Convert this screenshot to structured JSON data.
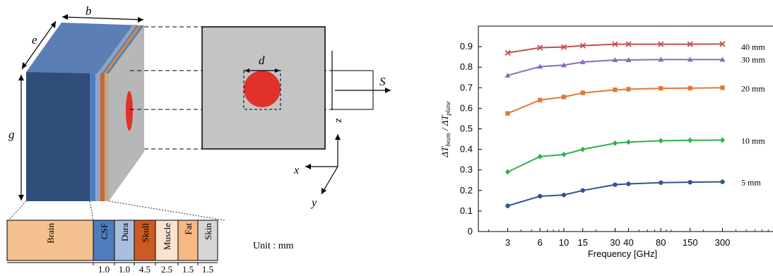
{
  "diagram": {
    "dim_b": "b",
    "dim_e": "e",
    "dim_g": "g",
    "dim_d": "d",
    "dim_S": "S",
    "axis_z": "z",
    "axis_x": "x",
    "axis_y": "y",
    "unit_text": "Unit : mm",
    "layers": [
      {
        "name": "Brain",
        "thickness": "",
        "color": "#F5C08F"
      },
      {
        "name": "CSF",
        "thickness": "1.0",
        "color": "#4E7DBE"
      },
      {
        "name": "Dura",
        "thickness": "1.0",
        "color": "#A9BEDD"
      },
      {
        "name": "Skull",
        "thickness": "4.5",
        "color": "#CC5A22"
      },
      {
        "name": "Muscle",
        "thickness": "2.5",
        "color": "#FAE3CE"
      },
      {
        "name": "Fat",
        "thickness": "1.5",
        "color": "#F7B883"
      },
      {
        "name": "Skin",
        "thickness": "1.5",
        "color": "#D6D6D6"
      }
    ]
  },
  "chart_data": {
    "type": "line",
    "x": [
      3,
      6,
      10,
      15,
      30,
      40,
      80,
      150,
      300
    ],
    "x_tick_labels": [
      "3",
      "6",
      "10",
      "15",
      "30",
      "40",
      "80",
      "150",
      "300"
    ],
    "xscale": "log",
    "xlabel": "Frequency [GHz]",
    "ylabel_main": "ΔT",
    "ylabel_sub1": "beam",
    "ylabel_mid": " / ΔT",
    "ylabel_sub2": "plane",
    "ylim": [
      0,
      1.0
    ],
    "y_ticks": [
      "0",
      "0.1",
      "0.2",
      "0.3",
      "0.4",
      "0.5",
      "0.6",
      "0.7",
      "0.8",
      "0.9"
    ],
    "series": [
      {
        "name": "40 mm",
        "color": "#C0504D",
        "marker": "x",
        "values": [
          0.87,
          0.895,
          0.898,
          0.905,
          0.912,
          0.912,
          0.912,
          0.912,
          0.913
        ]
      },
      {
        "name": "30 mm",
        "color": "#8A6BBE",
        "marker": "triangle",
        "values": [
          0.76,
          0.803,
          0.81,
          0.825,
          0.835,
          0.835,
          0.837,
          0.837,
          0.837
        ]
      },
      {
        "name": "20 mm",
        "color": "#E07A3A",
        "marker": "square",
        "values": [
          0.575,
          0.64,
          0.655,
          0.675,
          0.69,
          0.693,
          0.697,
          0.698,
          0.7
        ]
      },
      {
        "name": "10 mm",
        "color": "#2EB04F",
        "marker": "diamond",
        "values": [
          0.29,
          0.365,
          0.375,
          0.4,
          0.43,
          0.435,
          0.442,
          0.444,
          0.445
        ]
      },
      {
        "name": "5 mm",
        "color": "#2F5597",
        "marker": "circle",
        "values": [
          0.125,
          0.172,
          0.178,
          0.2,
          0.228,
          0.232,
          0.238,
          0.24,
          0.242
        ]
      }
    ]
  }
}
